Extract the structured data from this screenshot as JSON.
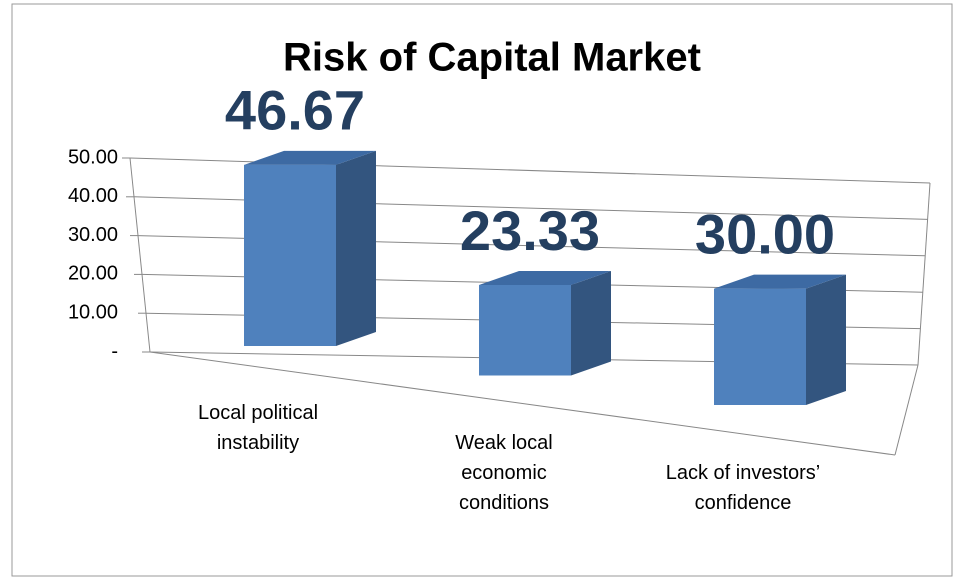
{
  "chart_data": {
    "type": "bar3d",
    "title": "Risk of Capital Market",
    "categories": [
      "Local political instability",
      "Weak local economic conditions",
      "Lack of investors’ confidence"
    ],
    "values": [
      46.67,
      23.33,
      30
    ],
    "value_labels": [
      "46.67",
      "23.33",
      "30.00"
    ],
    "color": "#4f81bd",
    "ylim": [
      0,
      50
    ],
    "yticks": [
      {
        "value": 0,
        "label": "-"
      },
      {
        "value": 10,
        "label": "10.00"
      },
      {
        "value": 20,
        "label": "20.00"
      },
      {
        "value": 30,
        "label": "30.00"
      },
      {
        "value": 40,
        "label": "40.00"
      },
      {
        "value": 50,
        "label": "50.00"
      }
    ],
    "grid": true
  }
}
